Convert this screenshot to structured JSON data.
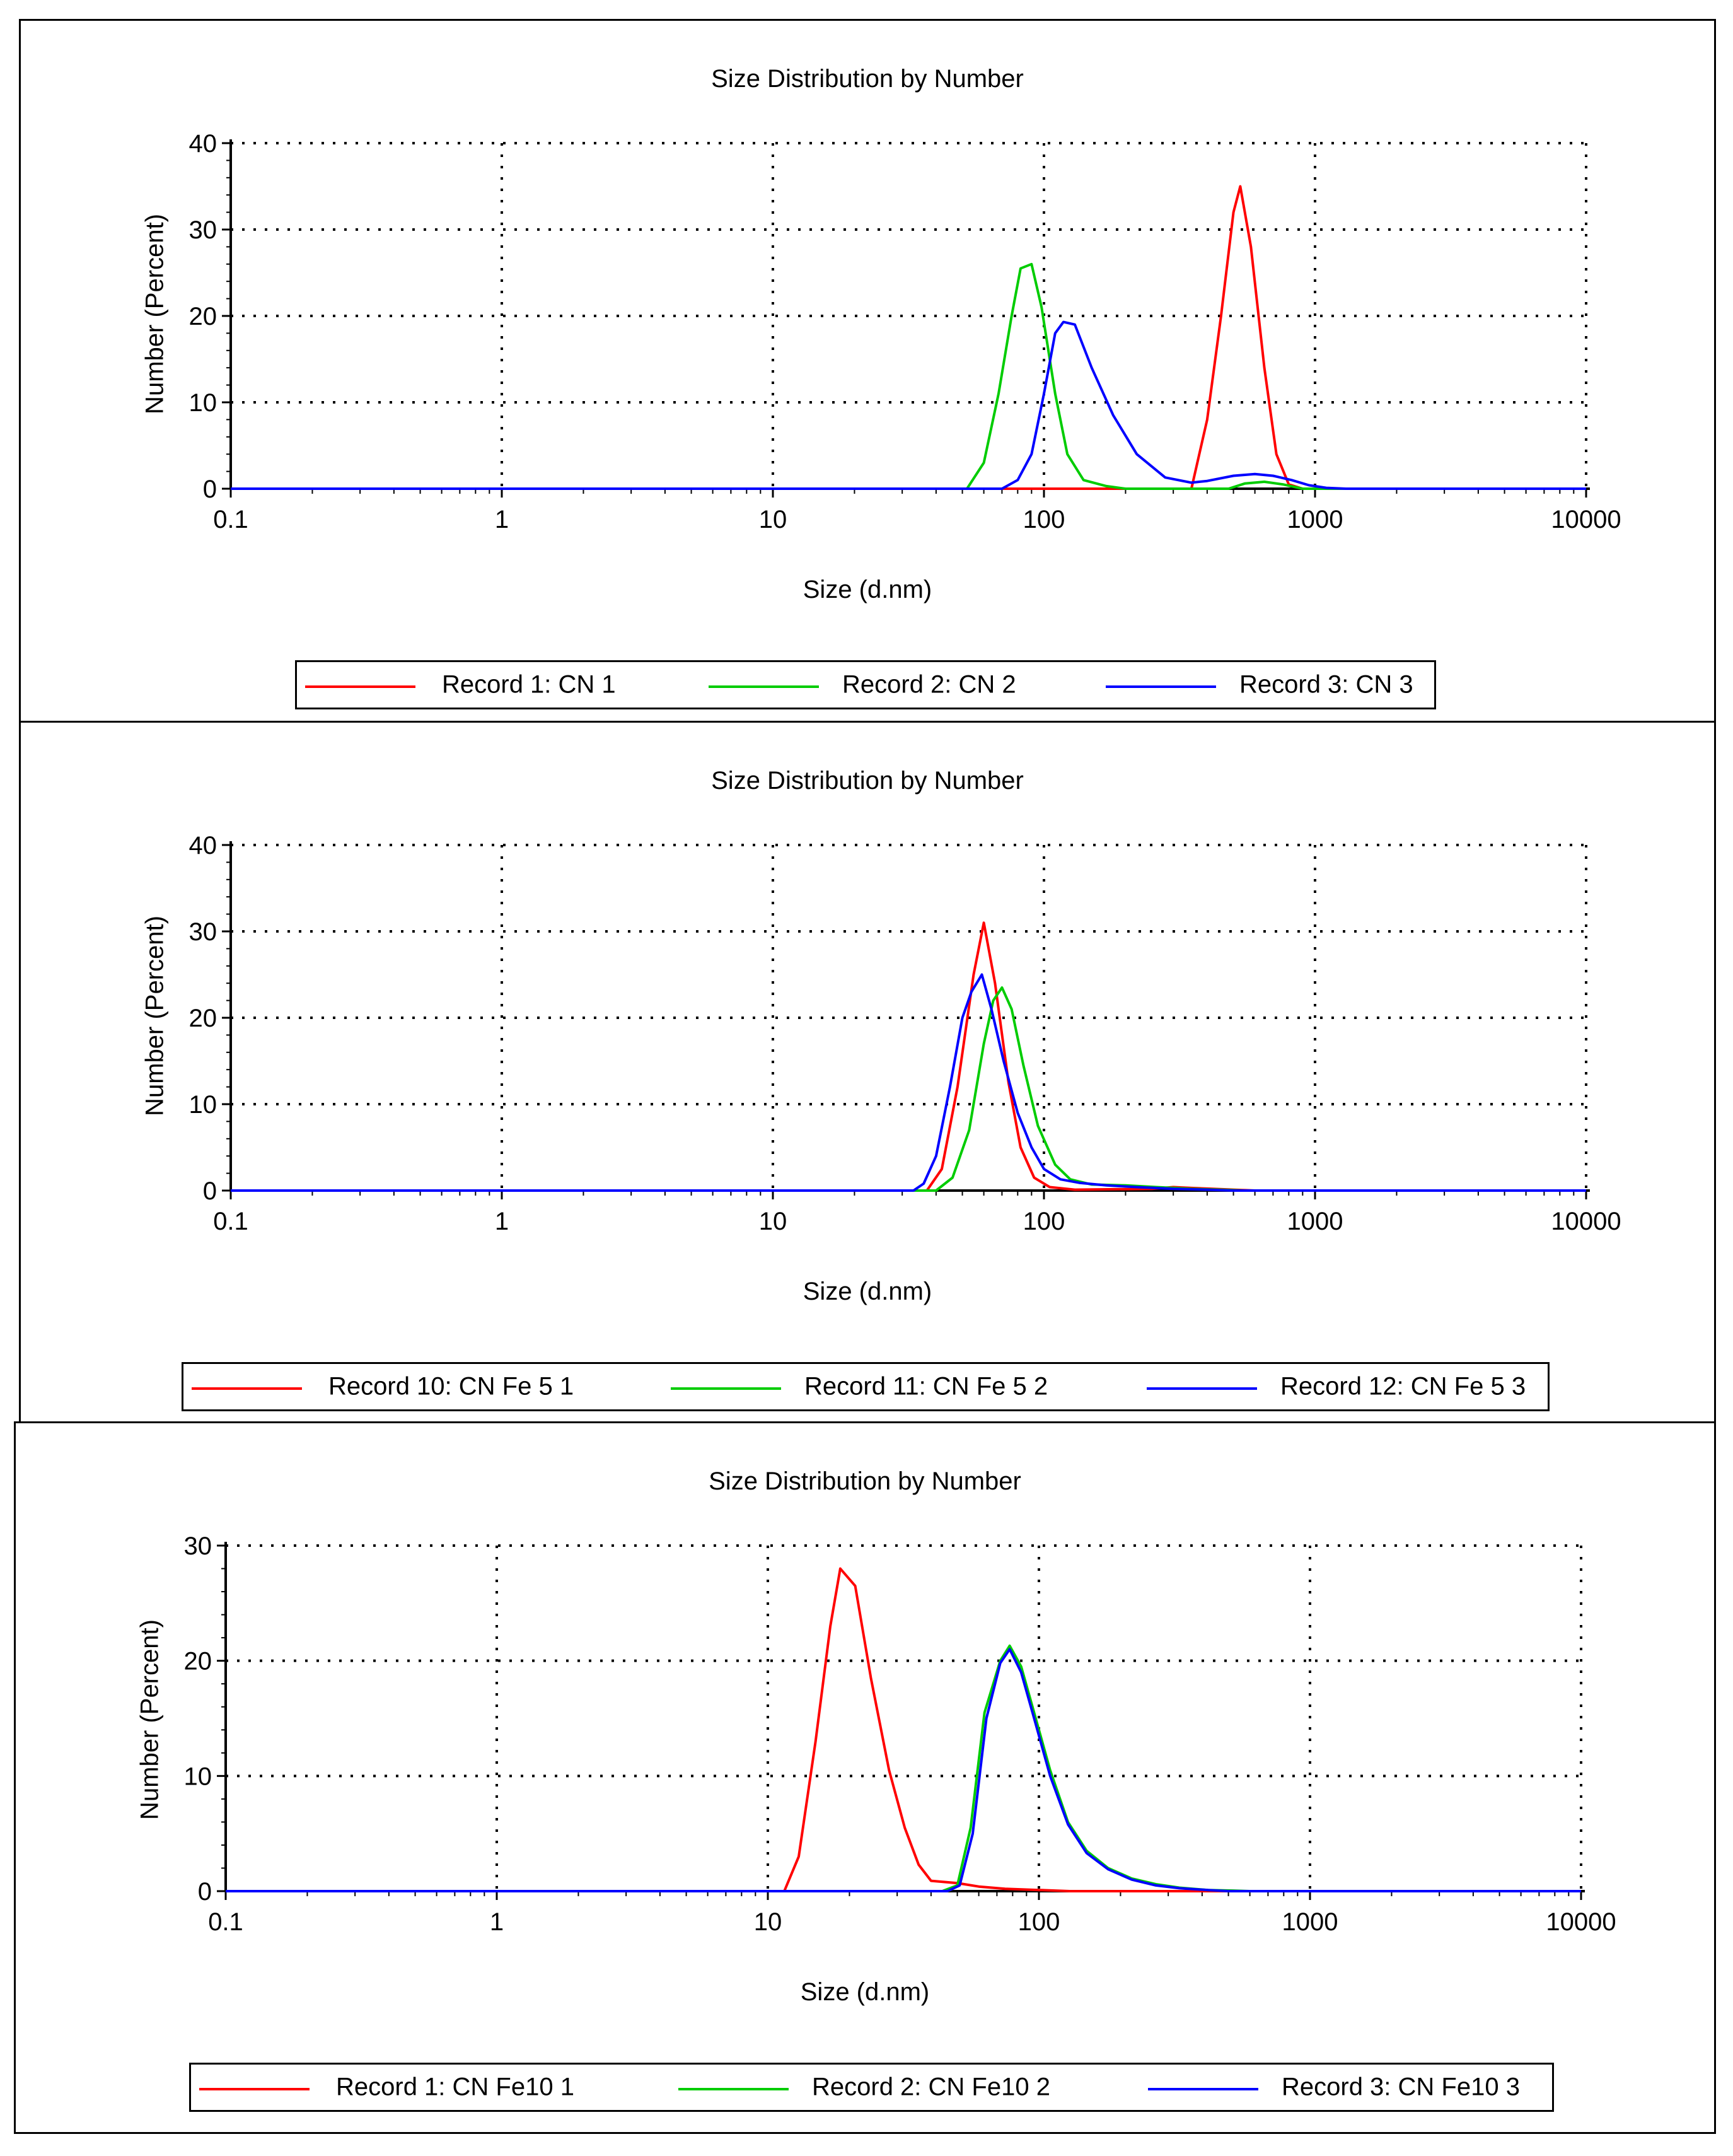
{
  "chart_data": [
    {
      "type": "line",
      "title": "Size Distribution by Number",
      "xlabel": "Size (d.nm)",
      "ylabel": "Number (Percent)",
      "xscale": "log",
      "xlim": [
        0.1,
        10000
      ],
      "ylim": [
        0,
        40
      ],
      "xticks": [
        "0.1",
        "1",
        "10",
        "100",
        "1000",
        "10000"
      ],
      "yticks": [
        "0",
        "10",
        "20",
        "30",
        "40"
      ],
      "grid": true,
      "legend_position": "bottom",
      "series": [
        {
          "name": "Record 1: CN 1",
          "color": "#ff0000",
          "points": [
            [
              0.1,
              0
            ],
            [
              350,
              0
            ],
            [
              400,
              8
            ],
            [
              450,
              20
            ],
            [
              500,
              32
            ],
            [
              530,
              35
            ],
            [
              580,
              28
            ],
            [
              650,
              14
            ],
            [
              720,
              4
            ],
            [
              800,
              0.5
            ],
            [
              900,
              0
            ],
            [
              10000,
              0
            ]
          ]
        },
        {
          "name": "Record 2: CN 2",
          "color": "#00cc00",
          "points": [
            [
              0.1,
              0
            ],
            [
              52,
              0
            ],
            [
              60,
              3
            ],
            [
              68,
              11
            ],
            [
              76,
              20
            ],
            [
              82,
              25.5
            ],
            [
              90,
              26
            ],
            [
              98,
              21
            ],
            [
              110,
              11
            ],
            [
              122,
              4
            ],
            [
              140,
              1
            ],
            [
              170,
              0.3
            ],
            [
              200,
              0
            ],
            [
              480,
              0
            ],
            [
              550,
              0.6
            ],
            [
              650,
              0.8
            ],
            [
              760,
              0.5
            ],
            [
              900,
              0
            ],
            [
              10000,
              0
            ]
          ]
        },
        {
          "name": "Record 3: CN 3",
          "color": "#0000ff",
          "points": [
            [
              0.1,
              0
            ],
            [
              70,
              0
            ],
            [
              80,
              1
            ],
            [
              90,
              4
            ],
            [
              100,
              11
            ],
            [
              110,
              18
            ],
            [
              118,
              19.3
            ],
            [
              130,
              19
            ],
            [
              150,
              14
            ],
            [
              180,
              8.5
            ],
            [
              220,
              4
            ],
            [
              280,
              1.3
            ],
            [
              350,
              0.7
            ],
            [
              400,
              0.9
            ],
            [
              500,
              1.5
            ],
            [
              600,
              1.7
            ],
            [
              700,
              1.5
            ],
            [
              820,
              1
            ],
            [
              950,
              0.4
            ],
            [
              1100,
              0.1
            ],
            [
              1300,
              0
            ],
            [
              10000,
              0
            ]
          ]
        }
      ]
    },
    {
      "type": "line",
      "title": "Size Distribution by Number",
      "xlabel": "Size (d.nm)",
      "ylabel": "Number (Percent)",
      "xscale": "log",
      "xlim": [
        0.1,
        10000
      ],
      "ylim": [
        0,
        40
      ],
      "xticks": [
        "0.1",
        "1",
        "10",
        "100",
        "1000",
        "10000"
      ],
      "yticks": [
        "0",
        "10",
        "20",
        "30",
        "40"
      ],
      "grid": true,
      "legend_position": "bottom",
      "series": [
        {
          "name": "Record 10: CN Fe 5 1",
          "color": "#ff0000",
          "points": [
            [
              0.1,
              0
            ],
            [
              37,
              0
            ],
            [
              42,
              2.5
            ],
            [
              48,
              12
            ],
            [
              55,
              25
            ],
            [
              60,
              31
            ],
            [
              66,
              24
            ],
            [
              74,
              12.5
            ],
            [
              82,
              5
            ],
            [
              92,
              1.5
            ],
            [
              105,
              0.4
            ],
            [
              130,
              0.1
            ],
            [
              250,
              0.2
            ],
            [
              300,
              0.4
            ],
            [
              350,
              0.3
            ],
            [
              420,
              0.2
            ],
            [
              500,
              0.1
            ],
            [
              600,
              0
            ],
            [
              10000,
              0
            ]
          ]
        },
        {
          "name": "Record 11: CN Fe 5 2",
          "color": "#00cc00",
          "points": [
            [
              0.1,
              0
            ],
            [
              40,
              0
            ],
            [
              46,
              1.5
            ],
            [
              53,
              7
            ],
            [
              60,
              17
            ],
            [
              65,
              22
            ],
            [
              70,
              23.5
            ],
            [
              76,
              21
            ],
            [
              84,
              14.5
            ],
            [
              95,
              7.5
            ],
            [
              110,
              3
            ],
            [
              125,
              1.3
            ],
            [
              150,
              0.7
            ],
            [
              200,
              0.6
            ],
            [
              260,
              0.4
            ],
            [
              350,
              0.2
            ],
            [
              450,
              0.1
            ],
            [
              550,
              0
            ],
            [
              10000,
              0
            ]
          ]
        },
        {
          "name": "Record 12: CN Fe 5 3",
          "color": "#0000ff",
          "points": [
            [
              0.1,
              0
            ],
            [
              33,
              0
            ],
            [
              36,
              0.8
            ],
            [
              40,
              4
            ],
            [
              45,
              12
            ],
            [
              50,
              20
            ],
            [
              54,
              23
            ],
            [
              59,
              25
            ],
            [
              64,
              21
            ],
            [
              71,
              15
            ],
            [
              80,
              9
            ],
            [
              90,
              5
            ],
            [
              100,
              2.5
            ],
            [
              115,
              1.3
            ],
            [
              135,
              0.9
            ],
            [
              170,
              0.6
            ],
            [
              220,
              0.4
            ],
            [
              300,
              0.2
            ],
            [
              400,
              0.1
            ],
            [
              500,
              0
            ],
            [
              10000,
              0
            ]
          ]
        }
      ]
    },
    {
      "type": "line",
      "title": "Size Distribution by Number",
      "xlabel": "Size (d.nm)",
      "ylabel": "Number (Percent)",
      "xscale": "log",
      "xlim": [
        0.1,
        10000
      ],
      "ylim": [
        0,
        30
      ],
      "xticks": [
        "0.1",
        "1",
        "10",
        "100",
        "1000",
        "10000"
      ],
      "yticks": [
        "0",
        "10",
        "20",
        "30"
      ],
      "grid": true,
      "legend_position": "bottom",
      "series": [
        {
          "name": "Record 1: CN Fe10 1",
          "color": "#ff0000",
          "points": [
            [
              0.1,
              0
            ],
            [
              11.5,
              0
            ],
            [
              13,
              3
            ],
            [
              15,
              13
            ],
            [
              17,
              23
            ],
            [
              18.5,
              28
            ],
            [
              21,
              26.5
            ],
            [
              24,
              18.5
            ],
            [
              28,
              10.5
            ],
            [
              32,
              5.5
            ],
            [
              36,
              2.3
            ],
            [
              40,
              0.9
            ],
            [
              50,
              0.7
            ],
            [
              60,
              0.4
            ],
            [
              75,
              0.2
            ],
            [
              100,
              0.1
            ],
            [
              130,
              0
            ],
            [
              10000,
              0
            ]
          ]
        },
        {
          "name": "Record 2: CN Fe10 2",
          "color": "#00cc00",
          "points": [
            [
              0.1,
              0
            ],
            [
              44,
              0
            ],
            [
              50,
              0.5
            ],
            [
              56,
              5.5
            ],
            [
              63,
              15.5
            ],
            [
              72,
              20
            ],
            [
              78,
              21.3
            ],
            [
              86,
              19.5
            ],
            [
              96,
              15.5
            ],
            [
              110,
              10.5
            ],
            [
              128,
              6
            ],
            [
              150,
              3.5
            ],
            [
              180,
              2
            ],
            [
              220,
              1.1
            ],
            [
              270,
              0.6
            ],
            [
              330,
              0.3
            ],
            [
              420,
              0.1
            ],
            [
              520,
              0.05
            ],
            [
              600,
              0
            ],
            [
              10000,
              0
            ]
          ]
        },
        {
          "name": "Record 3: CN Fe10 3",
          "color": "#0000ff",
          "points": [
            [
              0.1,
              0
            ],
            [
              46,
              0
            ],
            [
              51,
              0.5
            ],
            [
              57,
              5
            ],
            [
              64,
              15
            ],
            [
              72,
              19.8
            ],
            [
              78,
              21
            ],
            [
              86,
              19
            ],
            [
              96,
              15
            ],
            [
              110,
              10
            ],
            [
              128,
              5.8
            ],
            [
              150,
              3.3
            ],
            [
              180,
              1.9
            ],
            [
              220,
              1
            ],
            [
              270,
              0.5
            ],
            [
              330,
              0.25
            ],
            [
              420,
              0.1
            ],
            [
              500,
              0
            ],
            [
              10000,
              0
            ]
          ]
        }
      ]
    }
  ]
}
